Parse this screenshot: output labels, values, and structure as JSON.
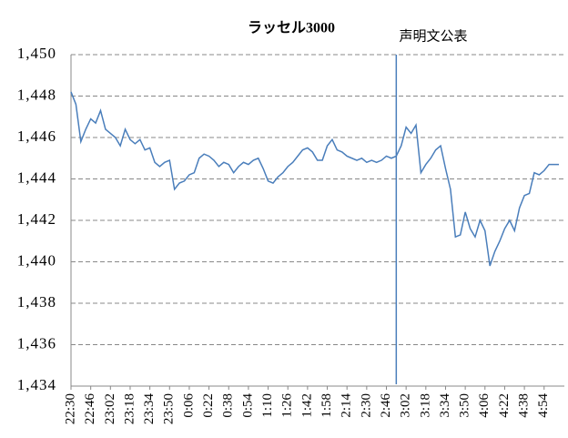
{
  "chart_data": {
    "type": "line",
    "title": "ラッセル3000",
    "annotation": {
      "text": "声明文公表",
      "index": 66
    },
    "categories": [
      "22:30",
      null,
      null,
      null,
      "22:46",
      null,
      null,
      null,
      "23:02",
      null,
      null,
      null,
      "23:18",
      null,
      null,
      null,
      "23:34",
      null,
      null,
      null,
      "23:50",
      null,
      null,
      null,
      "0:06",
      null,
      null,
      null,
      "0:22",
      null,
      null,
      null,
      "0:38",
      null,
      null,
      null,
      "0:54",
      null,
      null,
      null,
      "1:10",
      null,
      null,
      null,
      "1:26",
      null,
      null,
      null,
      "1:42",
      null,
      null,
      null,
      "1:58",
      null,
      null,
      null,
      "2:14",
      null,
      null,
      null,
      "2:30",
      null,
      null,
      null,
      "2:46",
      null,
      null,
      null,
      "3:02",
      null,
      null,
      null,
      "3:18",
      null,
      null,
      null,
      "3:34",
      null,
      null,
      null,
      "3:50",
      null,
      null,
      null,
      "4:06",
      null,
      null,
      null,
      "4:22",
      null,
      null,
      null,
      "4:38",
      null,
      null,
      null,
      "4:54",
      null,
      null,
      null
    ],
    "series": [
      {
        "name": "ラッセル3000",
        "color": "#4a7ebb",
        "values": [
          1448.2,
          1447.6,
          1445.8,
          1446.4,
          1446.9,
          1446.7,
          1447.3,
          1446.4,
          1446.2,
          1446.0,
          1445.6,
          1446.4,
          1445.9,
          1445.7,
          1445.9,
          1445.4,
          1445.5,
          1444.8,
          1444.6,
          1444.8,
          1444.9,
          1443.5,
          1443.8,
          1443.9,
          1444.2,
          1444.3,
          1445.0,
          1445.2,
          1445.1,
          1444.9,
          1444.6,
          1444.8,
          1444.7,
          1444.3,
          1444.6,
          1444.8,
          1444.7,
          1444.9,
          1445.0,
          1444.5,
          1443.9,
          1443.8,
          1444.1,
          1444.3,
          1444.6,
          1444.8,
          1445.1,
          1445.4,
          1445.5,
          1445.3,
          1444.9,
          1444.9,
          1445.6,
          1445.9,
          1445.4,
          1445.3,
          1445.1,
          1445.0,
          1444.9,
          1445.0,
          1444.8,
          1444.9,
          1444.8,
          1444.9,
          1445.1,
          1445.0,
          1445.1,
          1445.6,
          1446.5,
          1446.2,
          1446.6,
          1444.3,
          1444.7,
          1445.0,
          1445.4,
          1445.6,
          1444.5,
          1443.5,
          1441.2,
          1441.3,
          1442.4,
          1441.6,
          1441.2,
          1442.0,
          1441.5,
          1439.8,
          1440.5,
          1441.0,
          1441.6,
          1442.0,
          1441.5,
          1442.6,
          1443.2,
          1443.3,
          1444.3,
          1444.2,
          1444.4,
          1444.7,
          1444.7,
          1444.7
        ]
      }
    ],
    "ylim": [
      1434,
      1450
    ],
    "yticks": [
      {
        "value": 1434,
        "label": "1,434"
      },
      {
        "value": 1436,
        "label": "1,436"
      },
      {
        "value": 1438,
        "label": "1,438"
      },
      {
        "value": 1440,
        "label": "1,440"
      },
      {
        "value": 1442,
        "label": "1,442"
      },
      {
        "value": 1444,
        "label": "1,444"
      },
      {
        "value": 1446,
        "label": "1,446"
      },
      {
        "value": 1448,
        "label": "1,448"
      },
      {
        "value": 1450,
        "label": "1,450"
      }
    ],
    "grid": true
  }
}
